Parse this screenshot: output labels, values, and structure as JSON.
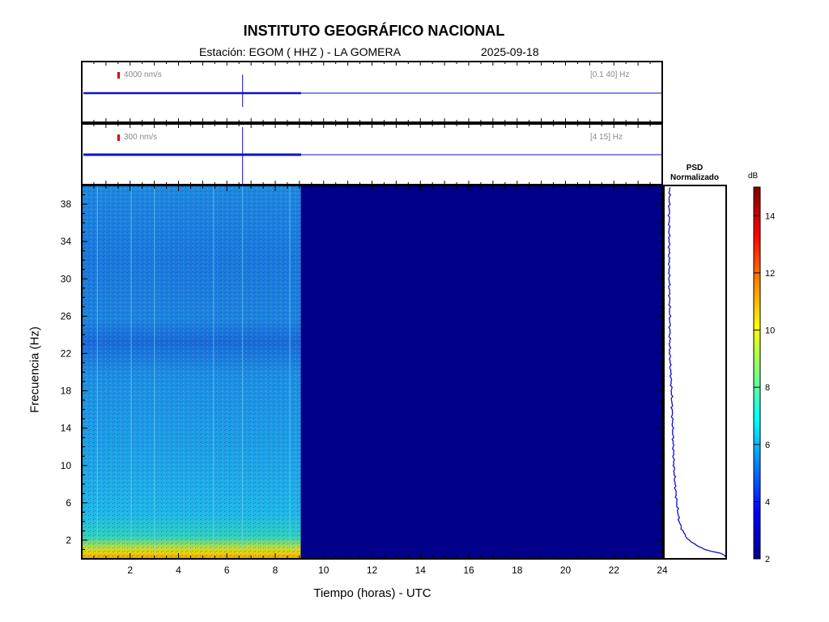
{
  "header": {
    "title": "INSTITUTO GEOGRÁFICO NACIONAL",
    "station": "Estación:  EGOM ( HHZ ) - LA GOMERA",
    "date": "2025-09-18"
  },
  "traces": [
    {
      "amplitude_label": "4000 nm/s",
      "band_label": "[0.1 40] Hz"
    },
    {
      "amplitude_label": "300 nm/s",
      "band_label": "[4 15] Hz"
    }
  ],
  "psd": {
    "title_line1": "PSD",
    "title_line2": "Normalizado"
  },
  "colorbar": {
    "unit": "dB",
    "ticks": [
      2,
      4,
      6,
      8,
      10,
      12,
      14
    ],
    "range": [
      2,
      15
    ]
  },
  "colors": {
    "trace": "#1010c8",
    "axis": "#000000",
    "red_marker": "#dd0000",
    "no_data": "#00008b"
  },
  "chart_data": {
    "type": "heatmap",
    "title": "INSTITUTO GEOGRÁFICO NACIONAL",
    "xlabel": "Tiempo (horas) - UTC",
    "ylabel": "Frecuencia  (Hz)",
    "xlim": [
      0,
      24
    ],
    "ylim": [
      0,
      40
    ],
    "x_ticks": [
      2,
      4,
      6,
      8,
      10,
      12,
      14,
      16,
      18,
      20,
      22,
      24
    ],
    "y_ticks": [
      2,
      6,
      10,
      14,
      18,
      22,
      26,
      30,
      34,
      38
    ],
    "data_end_hour": 9.05,
    "event_hour": 6.65,
    "psd_profile": {
      "freq": [
        0.5,
        1,
        2,
        3,
        4,
        6,
        8,
        10,
        14,
        18,
        22,
        26,
        30,
        34,
        38,
        40
      ],
      "level": [
        1.0,
        0.65,
        0.38,
        0.28,
        0.22,
        0.18,
        0.15,
        0.13,
        0.11,
        0.09,
        0.06,
        0.06,
        0.05,
        0.05,
        0.05,
        0.06
      ]
    }
  }
}
